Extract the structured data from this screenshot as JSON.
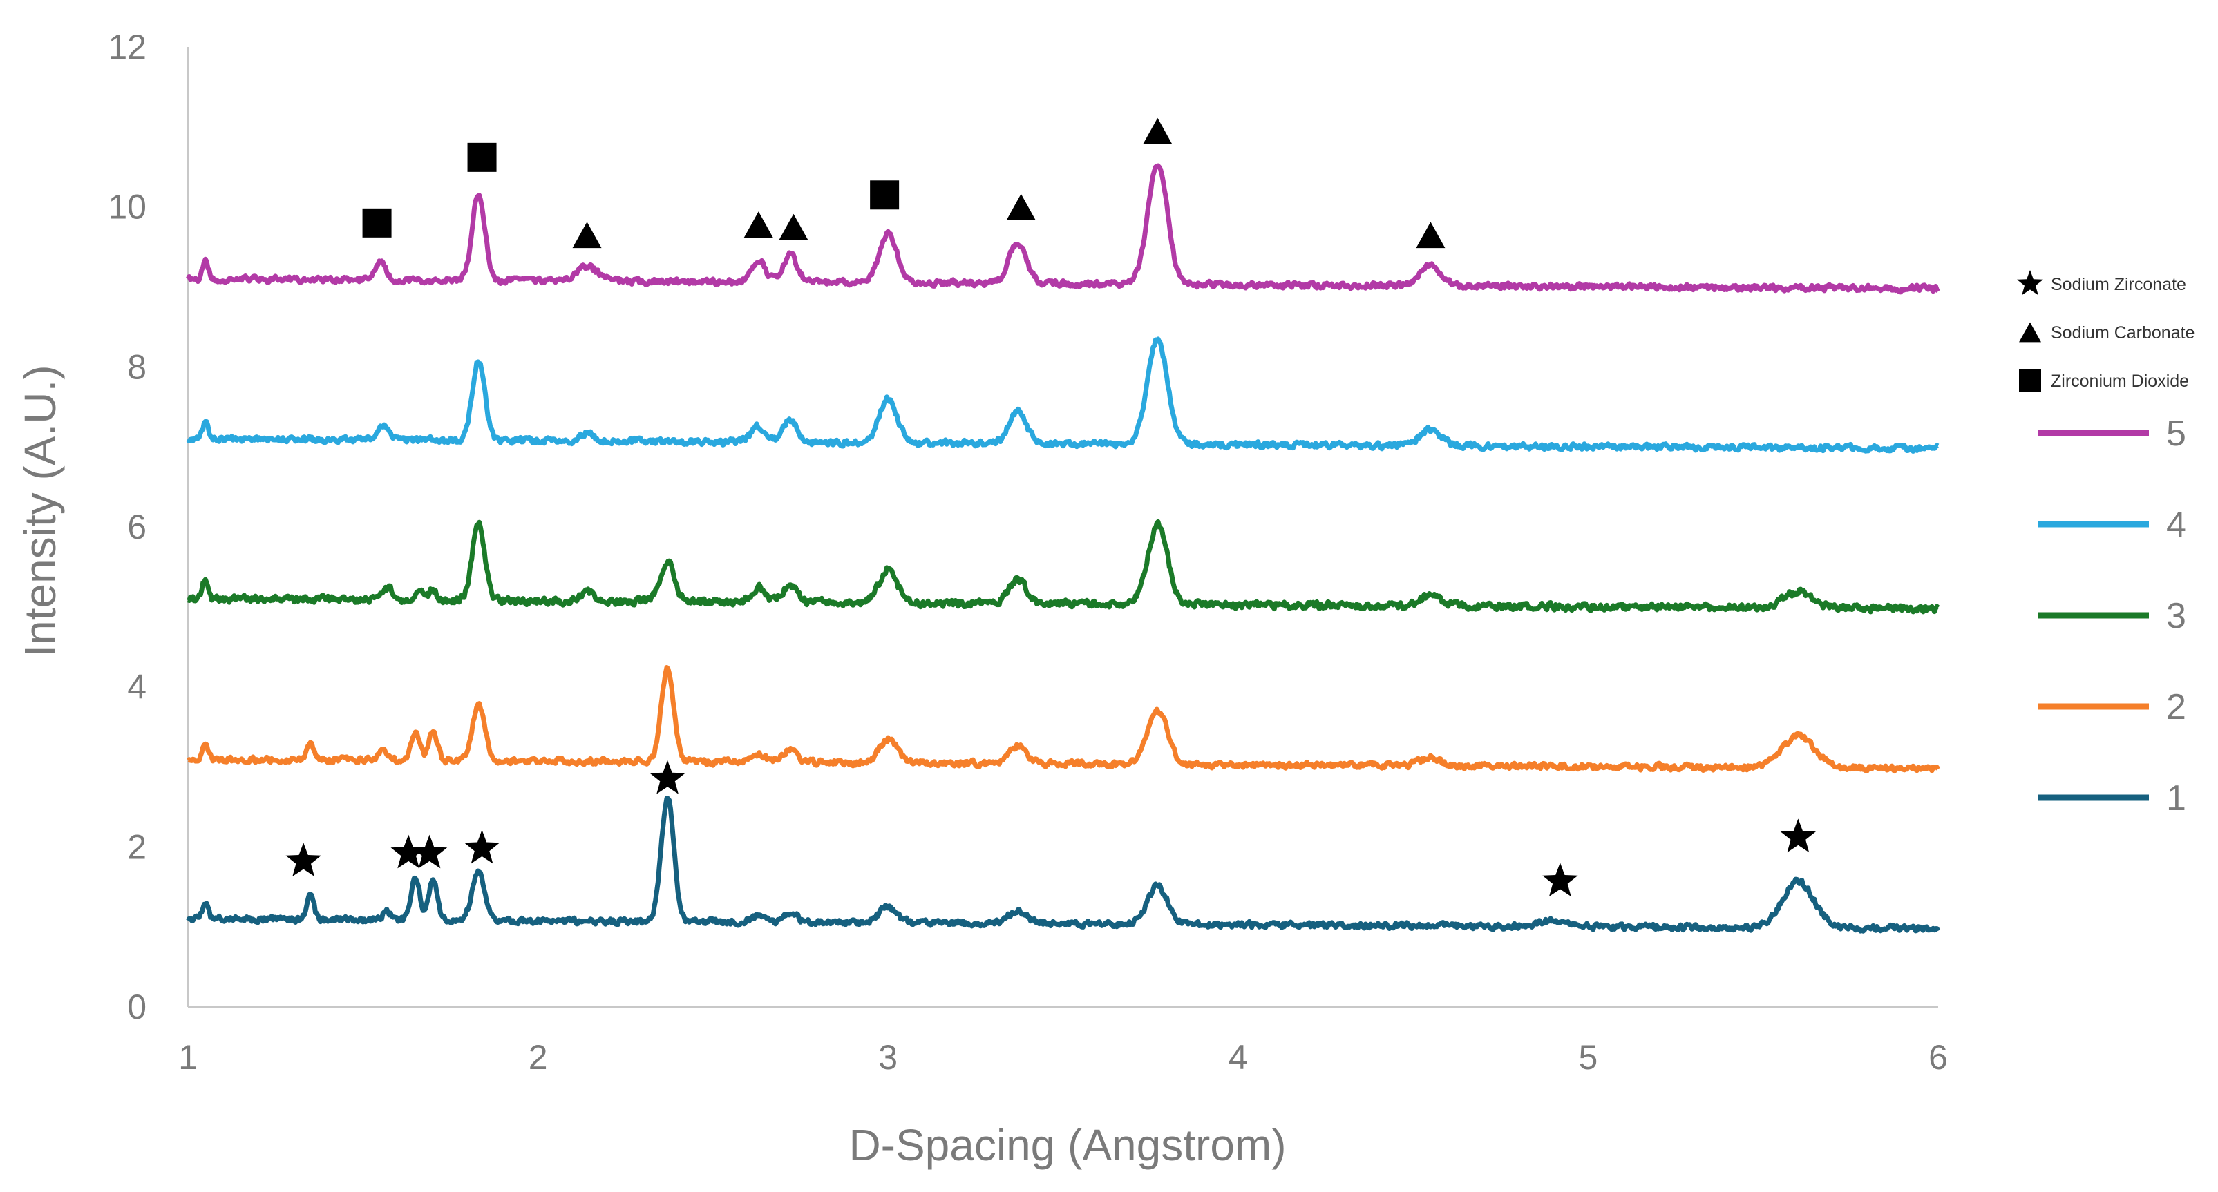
{
  "chart_data": {
    "type": "line",
    "xlabel": "D-Spacing (Angstrom)",
    "ylabel": "Intensity (A.U.)",
    "xlim": [
      1,
      6
    ],
    "ylim": [
      0,
      12
    ],
    "xticks": [
      1,
      2,
      3,
      4,
      5,
      6
    ],
    "yticks": [
      0,
      2,
      4,
      6,
      8,
      10,
      12
    ],
    "grid": false,
    "legend_position": "right",
    "series": [
      {
        "name": "5",
        "color": "#B23AA6",
        "baseline": 9.1,
        "slope": -0.024,
        "noise": 0.05,
        "seed": 5,
        "peaks": [
          [
            1.05,
            0.22,
            0.008
          ],
          [
            1.55,
            0.22,
            0.015
          ],
          [
            1.83,
            1.1,
            0.018
          ],
          [
            2.14,
            0.18,
            0.03
          ],
          [
            2.63,
            0.27,
            0.02
          ],
          [
            2.72,
            0.35,
            0.02
          ],
          [
            3.0,
            0.62,
            0.025
          ],
          [
            3.37,
            0.5,
            0.025
          ],
          [
            3.77,
            1.5,
            0.028
          ],
          [
            4.55,
            0.25,
            0.03
          ]
        ]
      },
      {
        "name": "4",
        "color": "#2AA8DE",
        "baseline": 7.1,
        "slope": -0.024,
        "noise": 0.05,
        "seed": 4,
        "peaks": [
          [
            1.05,
            0.2,
            0.008
          ],
          [
            1.56,
            0.2,
            0.015
          ],
          [
            1.83,
            1.0,
            0.018
          ],
          [
            2.14,
            0.1,
            0.02
          ],
          [
            2.63,
            0.2,
            0.02
          ],
          [
            2.72,
            0.28,
            0.02
          ],
          [
            3.0,
            0.56,
            0.025
          ],
          [
            3.37,
            0.4,
            0.025
          ],
          [
            3.77,
            1.32,
            0.028
          ],
          [
            4.55,
            0.2,
            0.03
          ]
        ]
      },
      {
        "name": "3",
        "color": "#1B7A28",
        "baseline": 5.1,
        "slope": -0.024,
        "noise": 0.06,
        "seed": 3,
        "peaks": [
          [
            1.05,
            0.25,
            0.008
          ],
          [
            1.57,
            0.15,
            0.015
          ],
          [
            1.66,
            0.15,
            0.012
          ],
          [
            1.7,
            0.13,
            0.012
          ],
          [
            1.83,
            0.95,
            0.018
          ],
          [
            2.14,
            0.12,
            0.02
          ],
          [
            2.37,
            0.5,
            0.02
          ],
          [
            2.63,
            0.18,
            0.02
          ],
          [
            2.72,
            0.22,
            0.02
          ],
          [
            3.0,
            0.42,
            0.025
          ],
          [
            3.37,
            0.3,
            0.025
          ],
          [
            3.77,
            1.0,
            0.028
          ],
          [
            4.55,
            0.12,
            0.03
          ],
          [
            5.6,
            0.2,
            0.04
          ]
        ]
      },
      {
        "name": "2",
        "color": "#F57F2A",
        "baseline": 3.1,
        "slope": -0.024,
        "noise": 0.05,
        "seed": 2,
        "peaks": [
          [
            1.05,
            0.2,
            0.008
          ],
          [
            1.35,
            0.22,
            0.01
          ],
          [
            1.56,
            0.12,
            0.015
          ],
          [
            1.65,
            0.35,
            0.012
          ],
          [
            1.7,
            0.35,
            0.012
          ],
          [
            1.83,
            0.7,
            0.018
          ],
          [
            2.37,
            1.15,
            0.018
          ],
          [
            2.63,
            0.1,
            0.02
          ],
          [
            2.72,
            0.15,
            0.02
          ],
          [
            3.0,
            0.3,
            0.025
          ],
          [
            3.37,
            0.22,
            0.025
          ],
          [
            3.77,
            0.68,
            0.028
          ],
          [
            4.55,
            0.1,
            0.03
          ],
          [
            5.6,
            0.4,
            0.045
          ]
        ]
      },
      {
        "name": "1",
        "color": "#16607F",
        "baseline": 1.1,
        "slope": -0.024,
        "noise": 0.05,
        "seed": 1,
        "peaks": [
          [
            1.05,
            0.2,
            0.008
          ],
          [
            1.35,
            0.3,
            0.01
          ],
          [
            1.57,
            0.1,
            0.015
          ],
          [
            1.65,
            0.55,
            0.012
          ],
          [
            1.7,
            0.5,
            0.012
          ],
          [
            1.83,
            0.6,
            0.018
          ],
          [
            2.37,
            1.55,
            0.018
          ],
          [
            2.63,
            0.08,
            0.02
          ],
          [
            2.72,
            0.12,
            0.02
          ],
          [
            3.0,
            0.2,
            0.025
          ],
          [
            3.37,
            0.16,
            0.025
          ],
          [
            3.77,
            0.48,
            0.028
          ],
          [
            4.9,
            0.08,
            0.04
          ],
          [
            5.6,
            0.58,
            0.045
          ]
        ]
      }
    ],
    "annotations": [
      {
        "marker": "square",
        "x": 1.54,
        "y": 9.8
      },
      {
        "marker": "square",
        "x": 1.84,
        "y": 10.62
      },
      {
        "marker": "triangle",
        "x": 2.14,
        "y": 9.65
      },
      {
        "marker": "triangle",
        "x": 2.63,
        "y": 9.78
      },
      {
        "marker": "triangle",
        "x": 2.73,
        "y": 9.75
      },
      {
        "marker": "square",
        "x": 2.99,
        "y": 10.15
      },
      {
        "marker": "triangle",
        "x": 3.38,
        "y": 10.0
      },
      {
        "marker": "triangle",
        "x": 3.77,
        "y": 10.95
      },
      {
        "marker": "triangle",
        "x": 4.55,
        "y": 9.65
      },
      {
        "marker": "star",
        "x": 1.33,
        "y": 1.82
      },
      {
        "marker": "star",
        "x": 1.63,
        "y": 1.92
      },
      {
        "marker": "star",
        "x": 1.69,
        "y": 1.92
      },
      {
        "marker": "star",
        "x": 1.84,
        "y": 1.98
      },
      {
        "marker": "star",
        "x": 2.37,
        "y": 2.85
      },
      {
        "marker": "star",
        "x": 4.92,
        "y": 1.57
      },
      {
        "marker": "star",
        "x": 5.6,
        "y": 2.12
      }
    ],
    "marker_legend": [
      {
        "marker": "star",
        "label": "Sodium Zirconate"
      },
      {
        "marker": "triangle",
        "label": "Sodium Carbonate"
      },
      {
        "marker": "square",
        "label": "Zirconium Dioxide"
      }
    ]
  }
}
